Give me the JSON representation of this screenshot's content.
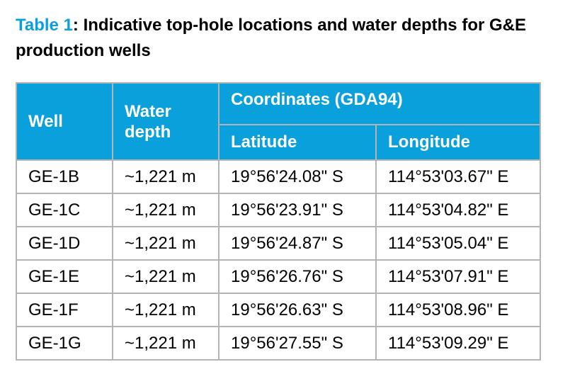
{
  "caption": {
    "label": "Table 1",
    "text": ": Indicative top-hole locations and water depths for G&E production wells"
  },
  "table": {
    "headers": {
      "well": "Well",
      "water_depth_line1": "Water",
      "water_depth_line2": "depth",
      "coordinates": "Coordinates (GDA94)",
      "latitude": "Latitude",
      "longitude": "Longitude"
    },
    "rows": [
      {
        "well": "GE-1B",
        "water_depth": "~1,221 m",
        "latitude": "19°56'24.08\" S",
        "longitude": "114°53'03.67\" E"
      },
      {
        "well": "GE-1C",
        "water_depth": "~1,221 m",
        "latitude": "19°56'23.91\" S",
        "longitude": "114°53'04.82\" E"
      },
      {
        "well": "GE-1D",
        "water_depth": "~1,221 m",
        "latitude": "19°56'24.87\" S",
        "longitude": "114°53'05.04\" E"
      },
      {
        "well": "GE-1E",
        "water_depth": "~1,221 m",
        "latitude": "19°56'26.76\" S",
        "longitude": "114°53'07.91\" E"
      },
      {
        "well": "GE-1F",
        "water_depth": "~1,221 m",
        "latitude": "19°56'26.63\" S",
        "longitude": "114°53'08.96\" E"
      },
      {
        "well": "GE-1G",
        "water_depth": "~1,221 m",
        "latitude": "19°56'27.55\" S",
        "longitude": "114°53'09.29\" E"
      }
    ]
  },
  "colors": {
    "header_background": "#0aa0dc",
    "caption_label": "#0aa0dc",
    "border": "#b4b4b4"
  }
}
